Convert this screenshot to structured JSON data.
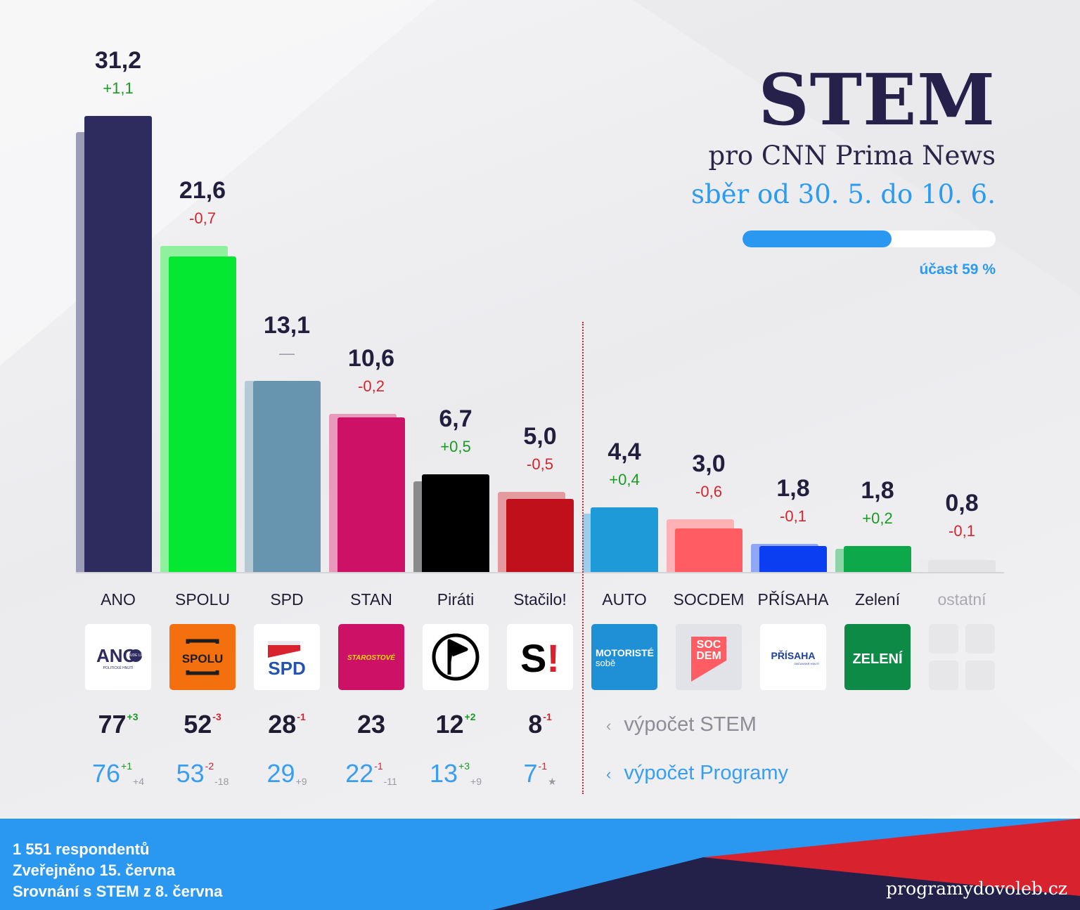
{
  "header": {
    "title": "STEM",
    "subtitle": "pro CNN Prima News",
    "period": "sběr od 30. 5. do 10. 6.",
    "turnout_label": "účast 59 %",
    "turnout_fraction": 0.59
  },
  "chart_data": {
    "type": "bar",
    "title": "STEM",
    "categories": [
      "ANO",
      "SPOLU",
      "SPD",
      "STAN",
      "Piráti",
      "Stačilo!",
      "AUTO",
      "SOCDEM",
      "PŘÍSAHA",
      "Zelení",
      "ostatní"
    ],
    "series": [
      {
        "values": [
          31.2,
          21.6,
          13.1,
          10.6,
          6.7,
          5.0,
          4.4,
          3.0,
          1.8,
          1.8,
          0.8
        ]
      },
      {
        "values": [
          30.1,
          22.3,
          13.1,
          10.8,
          6.2,
          5.5,
          4.0,
          3.6,
          1.9,
          1.6,
          0.9
        ]
      }
    ],
    "value_labels": [
      "31,2",
      "21,6",
      "13,1",
      "10,6",
      "6,7",
      "5,0",
      "4,4",
      "3,0",
      "1,8",
      "1,8",
      "0,8"
    ],
    "change_labels": [
      "+1,1",
      "-0,7",
      "—",
      "-0,2",
      "+0,5",
      "-0,5",
      "+0,4",
      "-0,6",
      "-0,1",
      "+0,2",
      "-0,1"
    ],
    "change_values": [
      1.1,
      -0.7,
      0,
      -0.2,
      0.5,
      -0.5,
      0.4,
      -0.6,
      -0.1,
      0.2,
      -0.1
    ],
    "colors": [
      "#2e2c5f",
      "#05e832",
      "#6795b0",
      "#cd1166",
      "#000000",
      "#c0101b",
      "#1f9ad8",
      "#ff5c63",
      "#0a3ef0",
      "#0da84a",
      "#e4e4e6"
    ],
    "prev_colors": [
      "#9d9cb6",
      "#8ff09e",
      "#b6c9d5",
      "#e79abb",
      "#8a8a8c",
      "#e49ba0",
      "#9ccdeb",
      "#ffb2b5",
      "#8fa7f4",
      "#8fd4a6",
      "#ececee"
    ],
    "positive_color": "#1a9a23",
    "negative_color": "#d0262f",
    "neutral_color": "#9a9aa2"
  },
  "seats": {
    "stem_label": "výpočet STEM",
    "programy_label": "výpočet Programy",
    "stem": [
      {
        "party": "ANO",
        "value": "77",
        "sup": "+3"
      },
      {
        "party": "SPOLU",
        "value": "52",
        "sup": "-3"
      },
      {
        "party": "SPD",
        "value": "28",
        "sup": "-1"
      },
      {
        "party": "STAN",
        "value": "23",
        "sup": ""
      },
      {
        "party": "Piráti",
        "value": "12",
        "sup": "+2"
      },
      {
        "party": "Stačilo!",
        "value": "8",
        "sup": "-1"
      }
    ],
    "programy": [
      {
        "party": "ANO",
        "value": "76",
        "sup": "+1",
        "sub": "+4"
      },
      {
        "party": "SPOLU",
        "value": "53",
        "sup": "-2",
        "sub": "-18"
      },
      {
        "party": "SPD",
        "value": "29",
        "sup": "",
        "sub": "+9"
      },
      {
        "party": "STAN",
        "value": "22",
        "sup": "-1",
        "sub": "-11"
      },
      {
        "party": "Piráti",
        "value": "13",
        "sup": "+3",
        "sub": "+9"
      },
      {
        "party": "Stačilo!",
        "value": "7",
        "sup": "-1",
        "sub": "★"
      }
    ]
  },
  "logos": [
    {
      "party": "ANO",
      "icon": "ano-logo",
      "text": "ANO",
      "small": "POLITICKÉ HNUTÍ",
      "badge": "BUDE LÍP",
      "bg": "#ffffff",
      "fg": "#2e2c5f"
    },
    {
      "party": "SPOLU",
      "icon": "spolu-logo",
      "text": "SPOLU",
      "bg": "#f4700f",
      "fg": "#1d1d1d"
    },
    {
      "party": "SPD",
      "icon": "spd-logo",
      "text": "SPD",
      "bg": "#ffffff",
      "fg": "#2353b2"
    },
    {
      "party": "STAN",
      "icon": "starostove-logo",
      "text": "STAROSTOVÉ",
      "bg": "#cd1166",
      "fg": "#f5d90a"
    },
    {
      "party": "Piráti",
      "icon": "pirate-flag-logo",
      "text": "",
      "bg": "#ffffff",
      "fg": "#000000"
    },
    {
      "party": "Stačilo!",
      "icon": "stacilo-logo",
      "text": "S!",
      "bg": "#ffffff",
      "fg": "#000000"
    },
    {
      "party": "AUTO",
      "icon": "motoriste-logo",
      "text": "MOTORISTÉ",
      "small": "sobě",
      "bg": "#1f8fd6",
      "fg": "#ffffff"
    },
    {
      "party": "SOCDEM",
      "icon": "socdem-logo",
      "text": "SOC",
      "text2": "DEM",
      "bg": "#e2e3e8",
      "fg": "#ffffff"
    },
    {
      "party": "PŘÍSAHA",
      "icon": "prisaha-logo",
      "text": "PŘÍSAHA",
      "small": "OBČANSKÉ HNUTÍ",
      "bg": "#ffffff",
      "fg": "#1c3f9e"
    },
    {
      "party": "Zelení",
      "icon": "zeleni-logo",
      "text": "ZELENÍ",
      "bg": "#0d8a45",
      "fg": "#ffffff"
    },
    {
      "party": "ostatní",
      "icon": "others-placeholder-icon",
      "text": "",
      "bg": "transparent",
      "fg": "#e7e7ea"
    }
  ],
  "footer": {
    "respondents": "1 551 respondentů",
    "published": "Zveřejněno 15. června",
    "comparison": "Srovnání s STEM z 8. června",
    "site": "programydovoleb.cz"
  }
}
